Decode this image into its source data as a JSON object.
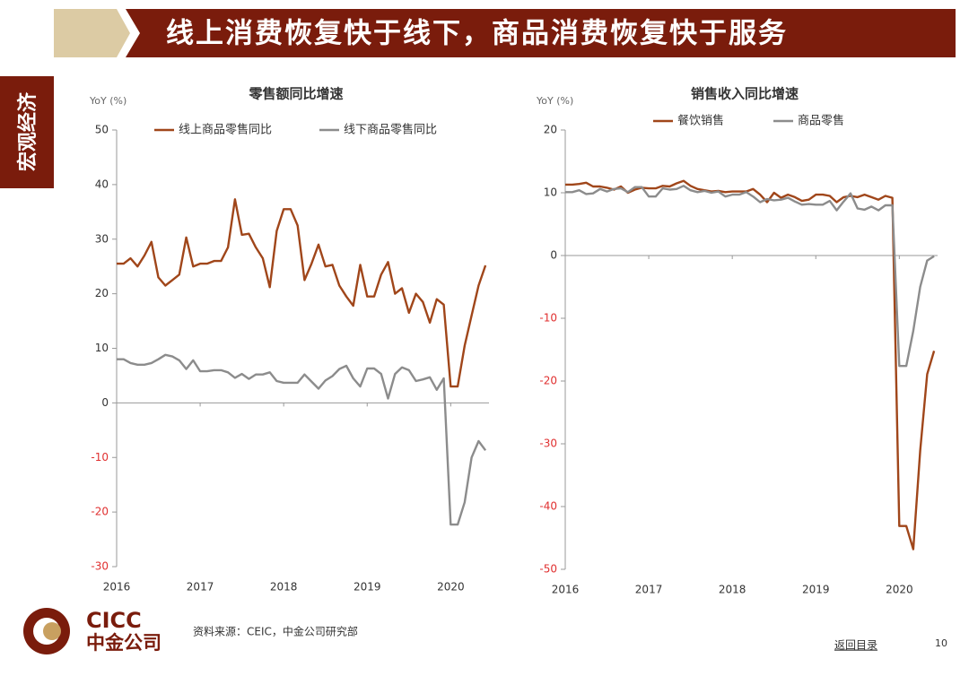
{
  "header": {
    "title": "线上消费恢复快于线下，商品消费恢复快于服务"
  },
  "side_label": "宏观经济",
  "logo": {
    "en": "CICC",
    "cn": "中金公司"
  },
  "source": "资料来源：CEIC，中金公司研究部",
  "footer": {
    "link": "返回目录",
    "page": "10"
  },
  "chart_data": [
    {
      "type": "line",
      "title": "零售额同比增速",
      "y_label": "YoY (%)",
      "categories": [
        "2016",
        null,
        null,
        null,
        null,
        null,
        null,
        null,
        null,
        null,
        null,
        null,
        "2017",
        null,
        null,
        null,
        null,
        null,
        null,
        null,
        null,
        null,
        null,
        null,
        "2018",
        null,
        null,
        null,
        null,
        null,
        null,
        null,
        null,
        null,
        null,
        null,
        "2019",
        null,
        null,
        null,
        null,
        null,
        null,
        null,
        null,
        null,
        null,
        null,
        "2020",
        null,
        null,
        null,
        null,
        null
      ],
      "series": [
        {
          "name": "线上商品零售同比",
          "color": "#a0461a",
          "values": [
            25.5,
            25.5,
            26.5,
            25,
            27,
            29.5,
            23,
            21.5,
            22.5,
            23.5,
            30.3,
            25,
            25.5,
            25.5,
            26,
            26,
            28.5,
            37.3,
            30.8,
            31,
            28.5,
            26.5,
            21.2,
            31.5,
            35.5,
            35.5,
            32.5,
            22.5,
            25.5,
            29,
            25,
            25.3,
            21.5,
            19.5,
            17.8,
            25.3,
            19.5,
            19.5,
            23.5,
            25.8,
            20,
            21,
            16.5,
            20,
            18.5,
            14.7,
            19,
            18,
            3,
            3,
            10.5,
            16,
            21.5,
            25.2
          ]
        },
        {
          "name": "线下商品零售同比",
          "color": "#8c8c8c",
          "values": [
            8,
            8,
            7.3,
            7,
            7,
            7.3,
            8,
            8.8,
            8.5,
            7.8,
            6.2,
            7.8,
            5.8,
            5.8,
            6,
            6,
            5.6,
            4.6,
            5.3,
            4.4,
            5.2,
            5.2,
            5.6,
            4,
            3.7,
            3.7,
            3.7,
            5.2,
            3.9,
            2.6,
            4.1,
            4.9,
            6.2,
            6.8,
            4.5,
            3,
            6.3,
            6.3,
            5.3,
            0.8,
            5.3,
            6.5,
            6,
            4,
            4.3,
            4.7,
            2.4,
            4.5,
            -22.3,
            -22.3,
            -18.2,
            -10,
            -7,
            -8.7
          ]
        }
      ],
      "ylim": [
        -30,
        50
      ],
      "yticks": [
        -30,
        -20,
        -10,
        0,
        10,
        20,
        30,
        40,
        50
      ],
      "negative_tick_color": "#e03030"
    },
    {
      "type": "line",
      "title": "销售收入同比增速",
      "y_label": "YoY (%)",
      "categories": [
        "2016",
        null,
        null,
        null,
        null,
        null,
        null,
        null,
        null,
        null,
        null,
        null,
        "2017",
        null,
        null,
        null,
        null,
        null,
        null,
        null,
        null,
        null,
        null,
        null,
        "2018",
        null,
        null,
        null,
        null,
        null,
        null,
        null,
        null,
        null,
        null,
        null,
        "2019",
        null,
        null,
        null,
        null,
        null,
        null,
        null,
        null,
        null,
        null,
        null,
        "2020",
        null,
        null,
        null,
        null,
        null
      ],
      "series": [
        {
          "name": "餐饮销售",
          "color": "#a0461a",
          "values": [
            11.3,
            11.3,
            11.4,
            11.6,
            11,
            11,
            10.8,
            10.5,
            11,
            10,
            10.5,
            10.8,
            10.7,
            10.7,
            11.1,
            11,
            11.5,
            11.9,
            11.1,
            10.6,
            10.4,
            10.2,
            10.3,
            10.1,
            10.2,
            10.2,
            10.2,
            10.6,
            9.7,
            8.5,
            10,
            9.2,
            9.7,
            9.3,
            8.7,
            8.9,
            9.7,
            9.7,
            9.5,
            8.5,
            9.3,
            9.5,
            9.3,
            9.7,
            9.3,
            8.9,
            9.5,
            9.2,
            -43.1,
            -43.1,
            -46.8,
            -31.1,
            -18.9,
            -15.2
          ]
        },
        {
          "name": "商品零售",
          "color": "#8c8c8c",
          "values": [
            10.1,
            10.1,
            10.4,
            9.8,
            9.9,
            10.6,
            10.2,
            10.6,
            10.7,
            10.1,
            10.9,
            10.9,
            9.4,
            9.4,
            10.7,
            10.5,
            10.6,
            11.1,
            10.4,
            10.1,
            10.3,
            10,
            10.2,
            9.4,
            9.7,
            9.7,
            10.1,
            9.4,
            8.5,
            9,
            8.8,
            8.9,
            9.2,
            8.6,
            8.1,
            8.2,
            8.1,
            8.1,
            8.7,
            7.2,
            8.6,
            9.9,
            7.5,
            7.3,
            7.8,
            7.2,
            8,
            8,
            -17.6,
            -17.6,
            -12,
            -5,
            -0.8,
            -0.1
          ]
        }
      ],
      "ylim": [
        -50,
        20
      ],
      "yticks": [
        -50,
        -40,
        -30,
        -20,
        -10,
        0,
        10,
        20
      ],
      "negative_tick_color": "#e03030"
    }
  ]
}
